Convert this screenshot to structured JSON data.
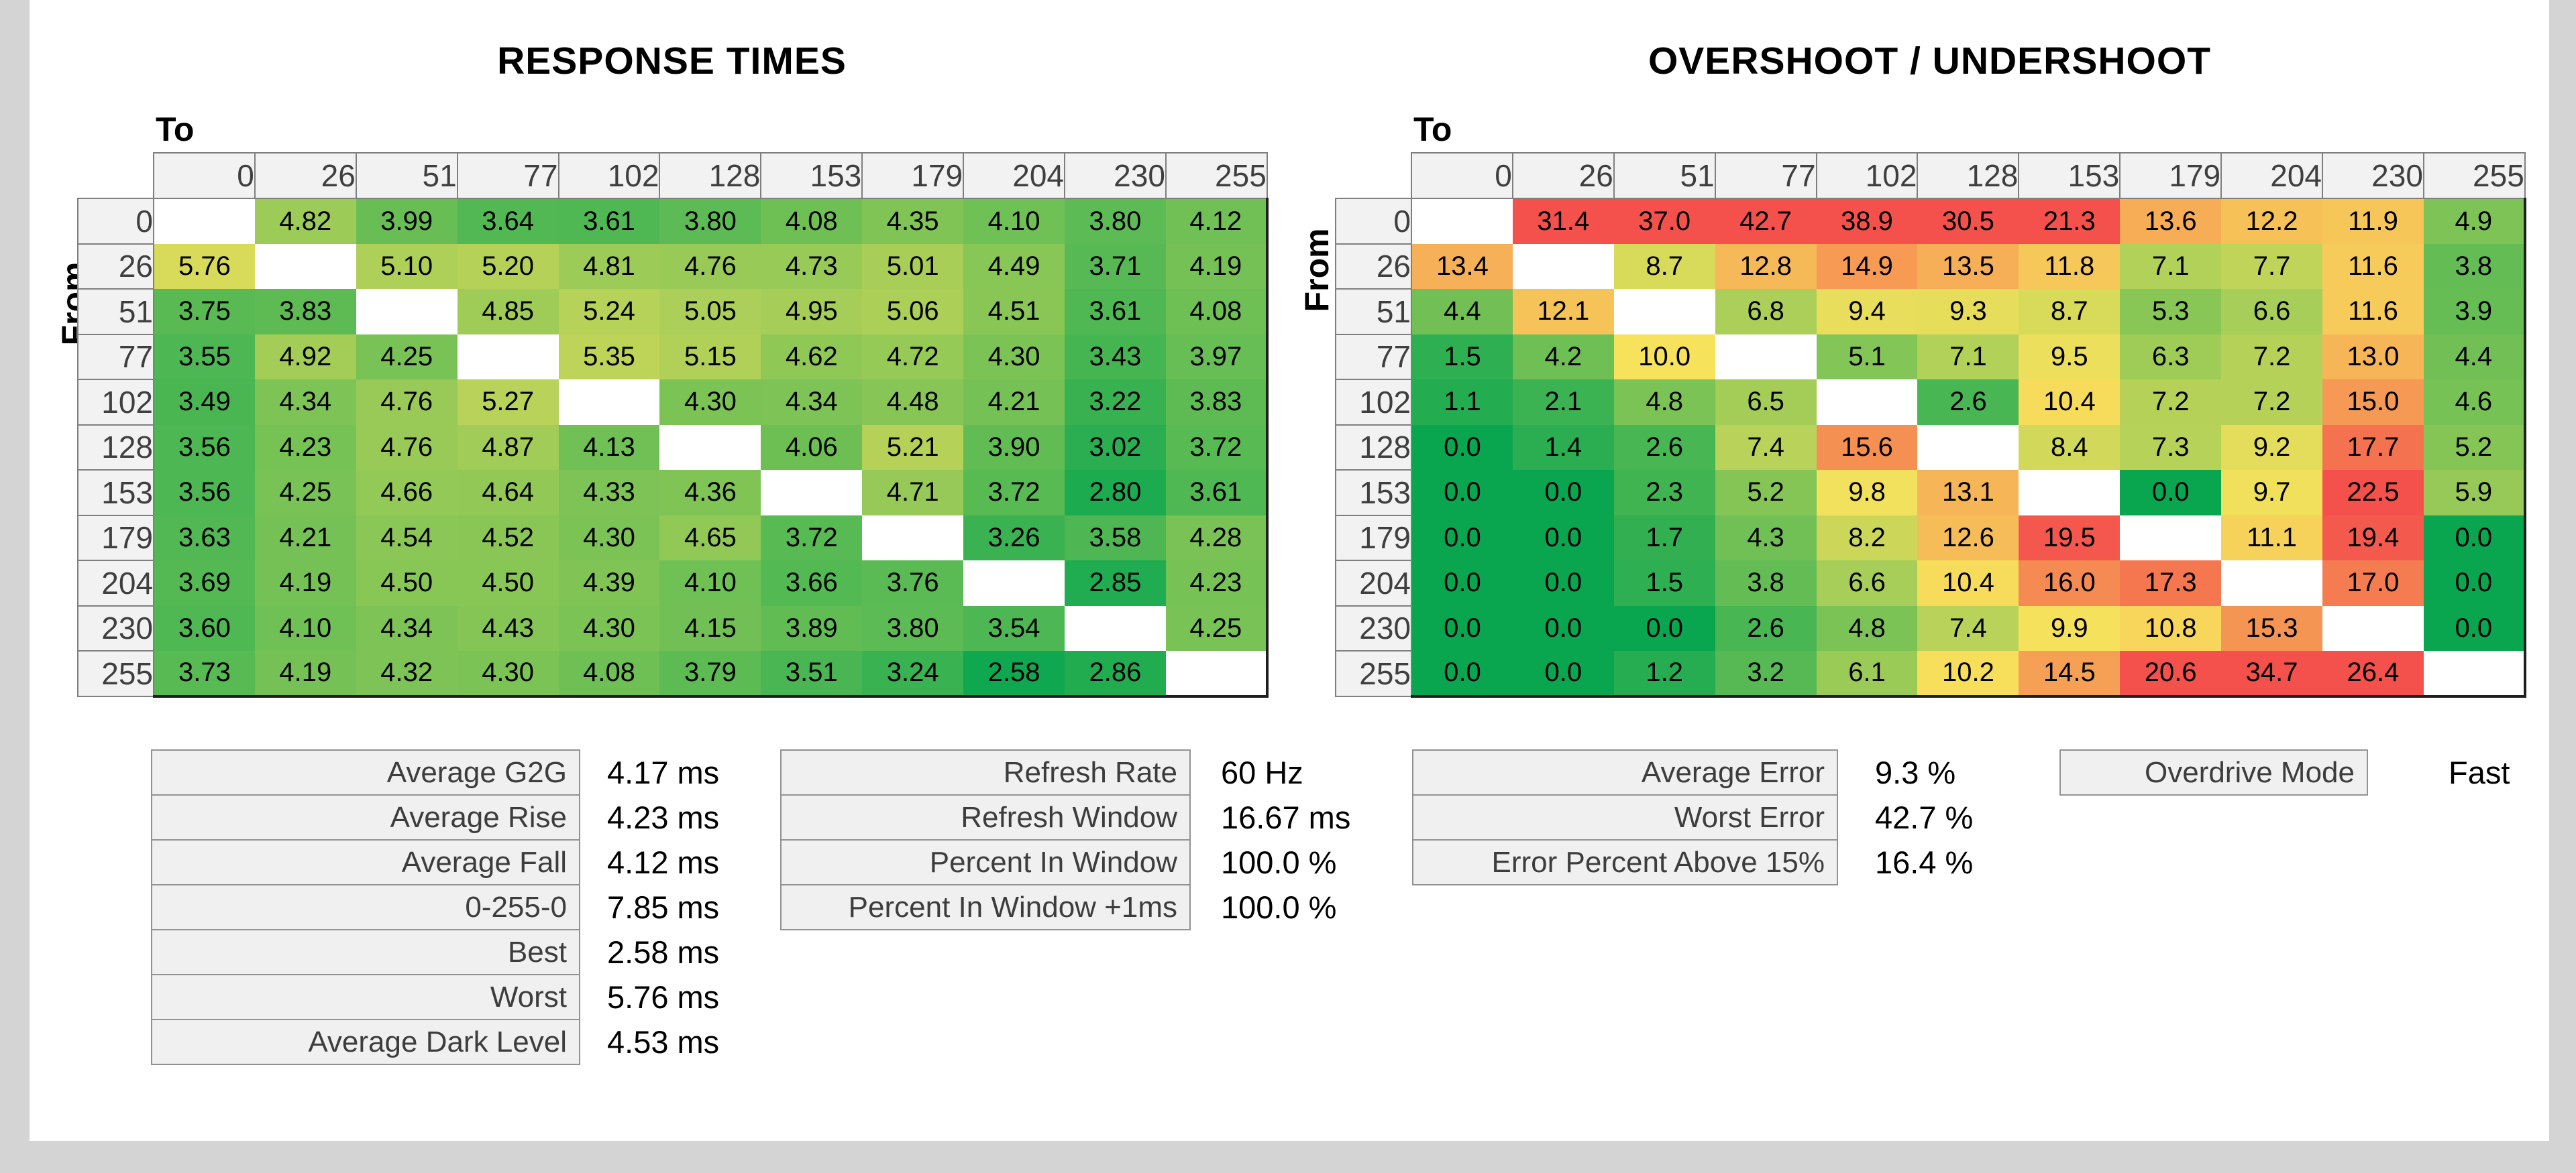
{
  "page": {
    "titles": {
      "response": "RESPONSE TIMES",
      "overshoot": "OVERSHOOT / UNDERSHOOT"
    },
    "axis": {
      "to": "To",
      "from": "From"
    }
  },
  "chart_data": [
    {
      "type": "heatmap",
      "title": "RESPONSE TIMES",
      "unit": "ms",
      "xlabel": "To",
      "ylabel": "From",
      "categories": [
        "0",
        "26",
        "51",
        "77",
        "102",
        "128",
        "153",
        "179",
        "204",
        "230",
        "255"
      ],
      "decimals": 2,
      "color_scale": {
        "green_at": 2.5,
        "red_at": 10,
        "note": "green-yellow-red, diagonal blank"
      },
      "matrix": [
        [
          null,
          4.82,
          3.99,
          3.64,
          3.61,
          3.8,
          4.08,
          4.35,
          4.1,
          3.8,
          4.12
        ],
        [
          5.76,
          null,
          5.1,
          5.2,
          4.81,
          4.76,
          4.73,
          5.01,
          4.49,
          3.71,
          4.19
        ],
        [
          3.75,
          3.83,
          null,
          4.85,
          5.24,
          5.05,
          4.95,
          5.06,
          4.51,
          3.61,
          4.08
        ],
        [
          3.55,
          4.92,
          4.25,
          null,
          5.35,
          5.15,
          4.62,
          4.72,
          4.3,
          3.43,
          3.97
        ],
        [
          3.49,
          4.34,
          4.76,
          5.27,
          null,
          4.3,
          4.34,
          4.48,
          4.21,
          3.22,
          3.83
        ],
        [
          3.56,
          4.23,
          4.76,
          4.87,
          4.13,
          null,
          4.06,
          5.21,
          3.9,
          3.02,
          3.72
        ],
        [
          3.56,
          4.25,
          4.66,
          4.64,
          4.33,
          4.36,
          null,
          4.71,
          3.72,
          2.8,
          3.61
        ],
        [
          3.63,
          4.21,
          4.54,
          4.52,
          4.3,
          4.65,
          3.72,
          null,
          3.26,
          3.58,
          4.28
        ],
        [
          3.69,
          4.19,
          4.5,
          4.5,
          4.39,
          4.1,
          3.66,
          3.76,
          null,
          2.85,
          4.23
        ],
        [
          3.6,
          4.1,
          4.34,
          4.43,
          4.3,
          4.15,
          3.89,
          3.8,
          3.54,
          null,
          4.25
        ],
        [
          3.73,
          4.19,
          4.32,
          4.3,
          4.08,
          3.79,
          3.51,
          3.24,
          2.58,
          2.86,
          null
        ]
      ]
    },
    {
      "type": "heatmap",
      "title": "OVERSHOOT / UNDERSHOOT",
      "unit": "%",
      "xlabel": "To",
      "ylabel": "From",
      "categories": [
        "0",
        "26",
        "51",
        "77",
        "102",
        "128",
        "153",
        "179",
        "204",
        "230",
        "255"
      ],
      "decimals": 1,
      "color_scale": {
        "green_at": 0,
        "red_at": 20,
        "note": "green-yellow-red, diagonal blank"
      },
      "matrix": [
        [
          null,
          31.4,
          37.0,
          42.7,
          38.9,
          30.5,
          21.3,
          13.6,
          12.2,
          11.9,
          4.9
        ],
        [
          13.4,
          null,
          8.7,
          12.8,
          14.9,
          13.5,
          11.8,
          7.1,
          7.7,
          11.6,
          3.8
        ],
        [
          4.4,
          12.1,
          null,
          6.8,
          9.4,
          9.3,
          8.7,
          5.3,
          6.6,
          11.6,
          3.9
        ],
        [
          1.5,
          4.2,
          10.0,
          null,
          5.1,
          7.1,
          9.5,
          6.3,
          7.2,
          13.0,
          4.4
        ],
        [
          1.1,
          2.1,
          4.8,
          6.5,
          null,
          2.6,
          10.4,
          7.2,
          7.2,
          15.0,
          4.6
        ],
        [
          0.0,
          1.4,
          2.6,
          7.4,
          15.6,
          null,
          8.4,
          7.3,
          9.2,
          17.7,
          5.2
        ],
        [
          0.0,
          0.0,
          2.3,
          5.2,
          9.8,
          13.1,
          null,
          0.0,
          9.7,
          22.5,
          5.9
        ],
        [
          0.0,
          0.0,
          1.7,
          4.3,
          8.2,
          12.6,
          19.5,
          null,
          11.1,
          19.4,
          0.0
        ],
        [
          0.0,
          0.0,
          1.5,
          3.8,
          6.6,
          10.4,
          16.0,
          17.3,
          null,
          17.0,
          0.0
        ],
        [
          0.0,
          0.0,
          0.0,
          2.6,
          4.8,
          7.4,
          9.9,
          10.8,
          15.3,
          null,
          0.0
        ],
        [
          0.0,
          0.0,
          1.2,
          3.2,
          6.1,
          10.2,
          14.5,
          20.6,
          34.7,
          26.4,
          null
        ]
      ]
    }
  ],
  "summaries": {
    "response": [
      {
        "label": "Average G2G",
        "value": "4.17 ms"
      },
      {
        "label": "Average Rise",
        "value": "4.23 ms"
      },
      {
        "label": "Average Fall",
        "value": "4.12 ms"
      },
      {
        "label": "0-255-0",
        "value": "7.85 ms"
      },
      {
        "label": "Best",
        "value": "2.58 ms"
      },
      {
        "label": "Worst",
        "value": "5.76 ms"
      },
      {
        "label": "Average Dark Level",
        "value": "4.53 ms"
      }
    ],
    "refresh": [
      {
        "label": "Refresh Rate",
        "value": "60 Hz"
      },
      {
        "label": "Refresh Window",
        "value": "16.67 ms"
      },
      {
        "label": "Percent In Window",
        "value": "100.0 %"
      },
      {
        "label": "Percent In Window +1ms",
        "value": "100.0 %"
      }
    ],
    "error": [
      {
        "label": "Average Error",
        "value": "9.3 %"
      },
      {
        "label": "Worst Error",
        "value": "42.7 %"
      },
      {
        "label": "Error Percent Above 15%",
        "value": "16.4 %"
      }
    ],
    "overdrive": {
      "label": "Overdrive Mode",
      "value": "Fast"
    }
  },
  "colors": {
    "green": "#0aa64f",
    "yellow": "#f7e25c",
    "red": "#f4504c",
    "header_bg": "#f2f2f2",
    "grid_border": "#7f7f7f",
    "outer_border": "#1f1f1f",
    "frame": "#d4d4d4",
    "label_text": "#3d3d3d",
    "header_text": "#3f3f3f"
  }
}
